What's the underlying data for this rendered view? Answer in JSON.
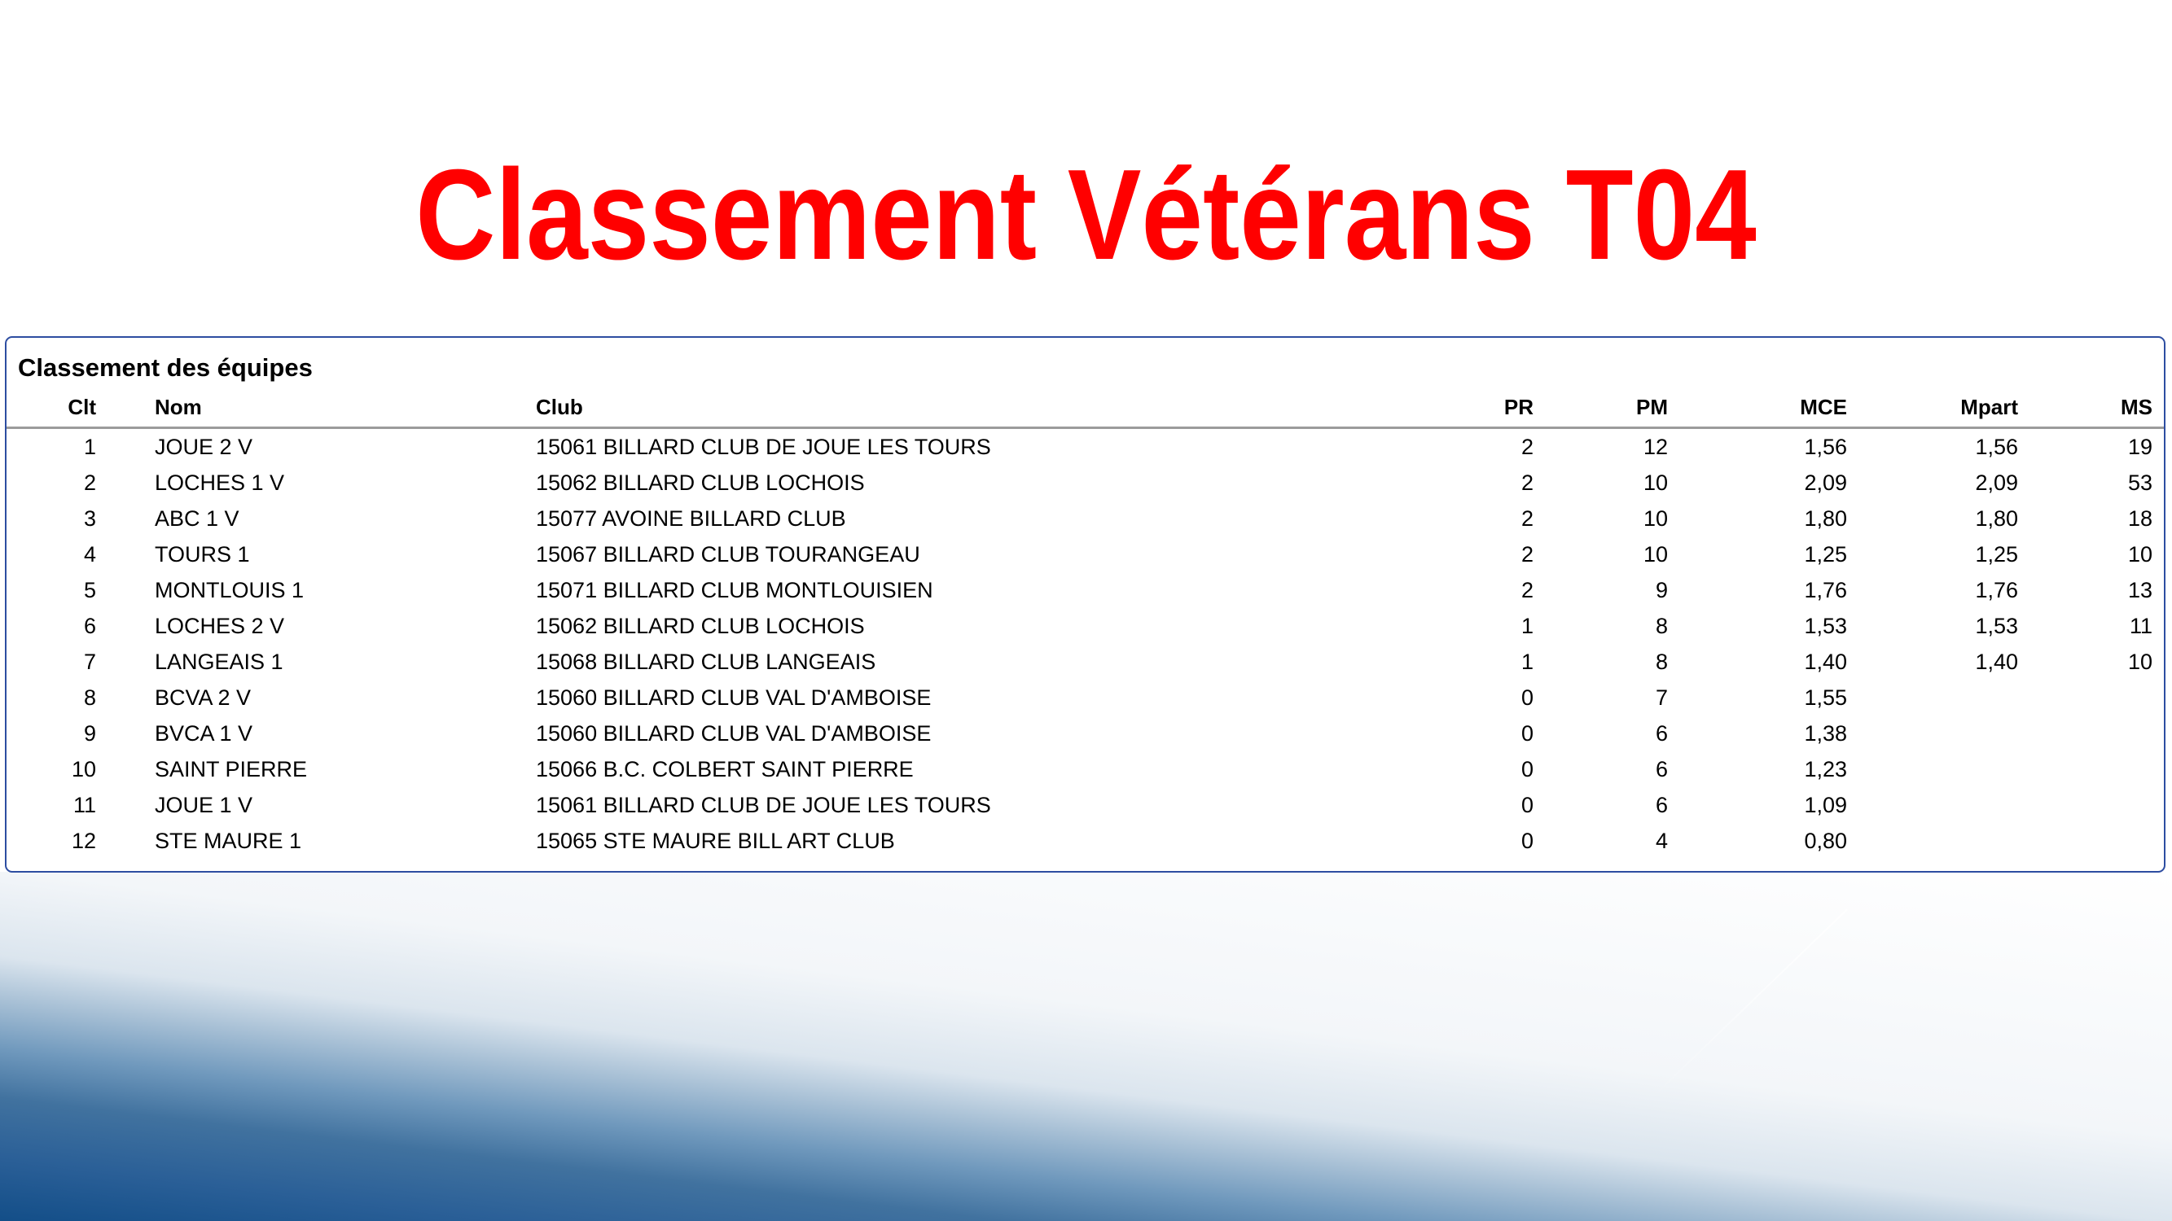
{
  "page": {
    "title": "Classement Vétérans T04"
  },
  "panel": {
    "title": "Classement des équipes",
    "table": {
      "columns": [
        "Clt",
        "Nom",
        "Club",
        "PR",
        "PM",
        "MCE",
        "Mpart",
        "MS"
      ],
      "rows": [
        [
          "1",
          "JOUE 2 V",
          "15061 BILLARD CLUB DE JOUE LES TOURS",
          "2",
          "12",
          "1,56",
          "1,56",
          "19"
        ],
        [
          "2",
          "LOCHES 1 V",
          "15062 BILLARD CLUB LOCHOIS",
          "2",
          "10",
          "2,09",
          "2,09",
          "53"
        ],
        [
          "3",
          "ABC 1 V",
          "15077 AVOINE BILLARD CLUB",
          "2",
          "10",
          "1,80",
          "1,80",
          "18"
        ],
        [
          "4",
          "TOURS 1",
          "15067 BILLARD CLUB TOURANGEAU",
          "2",
          "10",
          "1,25",
          "1,25",
          "10"
        ],
        [
          "5",
          "MONTLOUIS 1",
          "15071 BILLARD CLUB MONTLOUISIEN",
          "2",
          "9",
          "1,76",
          "1,76",
          "13"
        ],
        [
          "6",
          "LOCHES 2 V",
          "15062 BILLARD CLUB LOCHOIS",
          "1",
          "8",
          "1,53",
          "1,53",
          "11"
        ],
        [
          "7",
          "LANGEAIS 1",
          "15068 BILLARD CLUB LANGEAIS",
          "1",
          "8",
          "1,40",
          "1,40",
          "10"
        ],
        [
          "8",
          "BCVA 2 V",
          "15060 BILLARD CLUB VAL D'AMBOISE",
          "0",
          "7",
          "1,55",
          "",
          ""
        ],
        [
          "9",
          "BVCA 1 V",
          "15060 BILLARD CLUB VAL D'AMBOISE",
          "0",
          "6",
          "1,38",
          "",
          ""
        ],
        [
          "10",
          "SAINT PIERRE",
          "15066 B.C. COLBERT SAINT PIERRE",
          "0",
          "6",
          "1,23",
          "",
          ""
        ],
        [
          "11",
          "JOUE 1 V",
          "15061 BILLARD CLUB DE JOUE LES TOURS",
          "0",
          "6",
          "1,09",
          "",
          ""
        ],
        [
          "12",
          "STE MAURE 1",
          "15065 STE MAURE BILL ART CLUB",
          "0",
          "4",
          "0,80",
          "",
          ""
        ]
      ]
    }
  },
  "colors": {
    "title_red": "#ff0000",
    "panel_border_blue": "#2d4da1",
    "header_rule_gray": "#9b9b9b",
    "gradient_dark_blue": "#134e88",
    "gradient_mid_blue": "#7099bd",
    "gradient_light": "#f3f6f9"
  }
}
